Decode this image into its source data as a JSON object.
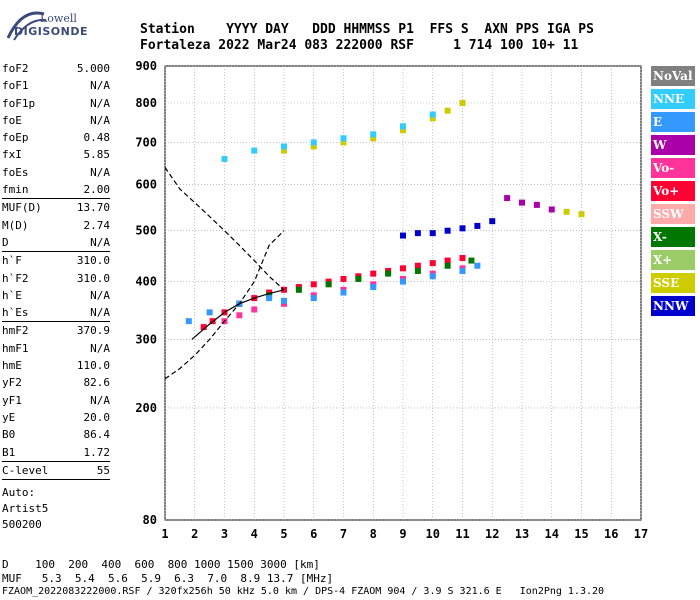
{
  "logo": {
    "top": "Lowell",
    "bottom": "DIGISONDE"
  },
  "header": {
    "line1": "Station    YYYY DAY   DDD HHMMSS P1  FFS S  AXN PPS IGA PS",
    "line2": "Fortaleza 2022 Mar24 083 222000 RSF     1 714 100 10+ 11"
  },
  "params": [
    {
      "k": "foF2",
      "v": "5.000"
    },
    {
      "k": "foF1",
      "v": "N/A"
    },
    {
      "k": "foF1p",
      "v": "N/A"
    },
    {
      "k": "foE",
      "v": "N/A"
    },
    {
      "k": "foEp",
      "v": "0.48"
    },
    {
      "k": "fxI",
      "v": "5.85"
    },
    {
      "k": "foEs",
      "v": "N/A"
    },
    {
      "k": "fmin",
      "v": "2.00"
    },
    {
      "k": "MUF(D)",
      "v": "13.70"
    },
    {
      "k": "M(D)",
      "v": "2.74"
    },
    {
      "k": "D",
      "v": "N/A"
    },
    {
      "k": "h`F",
      "v": "310.0"
    },
    {
      "k": "h`F2",
      "v": "310.0"
    },
    {
      "k": "h`E",
      "v": "N/A"
    },
    {
      "k": "h`Es",
      "v": "N/A"
    },
    {
      "k": "hmF2",
      "v": "370.9"
    },
    {
      "k": "hmF1",
      "v": "N/A"
    },
    {
      "k": "hmE",
      "v": "110.0"
    },
    {
      "k": "yF2",
      "v": "82.6"
    },
    {
      "k": "yF1",
      "v": "N/A"
    },
    {
      "k": "yE",
      "v": "20.0"
    },
    {
      "k": "B0",
      "v": "86.4"
    },
    {
      "k": "B1",
      "v": "1.72"
    },
    {
      "k": "C-level",
      "v": "55"
    }
  ],
  "auto": {
    "line1": "Auto:",
    "line2": "Artist5",
    "line3": "500200"
  },
  "bottom": {
    "d_row": "D    100  200  400  600  800 1000 1500 3000 [km]",
    "muf_row": "MUF   5.3  5.4  5.6  5.9  6.3  7.0  8.9 13.7 [MHz]",
    "footer": "FZAOM_2022083222000.RSF / 320fx256h 50 kHz 5.0 km / DPS-4 FZAOM 904 / 3.9 S 321.6 E   Ion2Png 1.3.20"
  },
  "legend": [
    {
      "label": "NoVal",
      "color": "#808080"
    },
    {
      "label": "NNE",
      "color": "#33ccff"
    },
    {
      "label": "E",
      "color": "#3399ff"
    },
    {
      "label": "W",
      "color": "#aa00aa"
    },
    {
      "label": "Vo-",
      "color": "#ff3399"
    },
    {
      "label": "Vo+",
      "color": "#ff0033"
    },
    {
      "label": "SSW",
      "color": "#ffaaaa"
    },
    {
      "label": "X-",
      "color": "#007700"
    },
    {
      "label": "X+",
      "color": "#99cc66"
    },
    {
      "label": "SSE",
      "color": "#cccc00"
    },
    {
      "label": "NNW",
      "color": "#0000cc"
    }
  ],
  "chart_data": {
    "type": "scatter",
    "title": "",
    "xlabel": "",
    "ylabel": "",
    "x_ticks": [
      1,
      2,
      3,
      4,
      5,
      6,
      7,
      8,
      9,
      10,
      11,
      12,
      13,
      14,
      15,
      16,
      17
    ],
    "y_ticks": [
      80,
      200,
      300,
      400,
      500,
      600,
      700,
      800,
      900
    ],
    "xlim": [
      1,
      17
    ],
    "ylim": [
      80,
      900
    ],
    "ylim_note": "square-root spaced axis",
    "grid": true,
    "series": [
      {
        "name": "Vo+",
        "color": "#ff0033",
        "points": [
          [
            2.3,
            320
          ],
          [
            2.6,
            330
          ],
          [
            3.0,
            345
          ],
          [
            3.5,
            360
          ],
          [
            4.0,
            370
          ],
          [
            4.5,
            380
          ],
          [
            5.0,
            385
          ],
          [
            5.5,
            390
          ],
          [
            6.0,
            395
          ],
          [
            6.5,
            400
          ],
          [
            7.0,
            405
          ],
          [
            7.5,
            410
          ],
          [
            8.0,
            415
          ],
          [
            8.5,
            420
          ],
          [
            9.0,
            425
          ],
          [
            9.5,
            430
          ],
          [
            10.0,
            435
          ],
          [
            10.5,
            440
          ],
          [
            11.0,
            445
          ]
        ]
      },
      {
        "name": "Vo-",
        "color": "#ff3399",
        "points": [
          [
            3.0,
            330
          ],
          [
            3.5,
            340
          ],
          [
            4.0,
            350
          ],
          [
            5.0,
            360
          ],
          [
            6.0,
            375
          ],
          [
            7.0,
            385
          ],
          [
            8.0,
            395
          ],
          [
            9.0,
            405
          ],
          [
            10.0,
            415
          ],
          [
            11.0,
            425
          ]
        ]
      },
      {
        "name": "X-",
        "color": "#007700",
        "points": [
          [
            3.5,
            360
          ],
          [
            4.5,
            375
          ],
          [
            5.5,
            385
          ],
          [
            6.5,
            395
          ],
          [
            7.5,
            405
          ],
          [
            8.5,
            415
          ],
          [
            9.5,
            420
          ],
          [
            10.5,
            430
          ],
          [
            11.3,
            440
          ]
        ]
      },
      {
        "name": "E",
        "color": "#3399ff",
        "points": [
          [
            1.8,
            330
          ],
          [
            2.5,
            345
          ],
          [
            3.5,
            360
          ],
          [
            4.5,
            370
          ],
          [
            5.0,
            365
          ],
          [
            6.0,
            370
          ],
          [
            7.0,
            380
          ],
          [
            8.0,
            390
          ],
          [
            9.0,
            400
          ],
          [
            10.0,
            410
          ],
          [
            11.0,
            420
          ],
          [
            11.5,
            430
          ]
        ]
      },
      {
        "name": "NNW",
        "color": "#0000cc",
        "points": [
          [
            9.0,
            490
          ],
          [
            9.5,
            495
          ],
          [
            10.0,
            495
          ],
          [
            10.5,
            500
          ],
          [
            11.0,
            505
          ],
          [
            11.5,
            510
          ],
          [
            12.0,
            520
          ]
        ]
      },
      {
        "name": "W",
        "color": "#aa00aa",
        "points": [
          [
            12.5,
            570
          ],
          [
            13.0,
            560
          ],
          [
            13.5,
            555
          ],
          [
            14.0,
            545
          ]
        ]
      },
      {
        "name": "SSE",
        "color": "#cccc00",
        "points": [
          [
            14.5,
            540
          ],
          [
            15.0,
            535
          ],
          [
            5.0,
            680
          ],
          [
            6.0,
            690
          ],
          [
            7.0,
            700
          ],
          [
            8.0,
            710
          ],
          [
            9.0,
            730
          ],
          [
            10.0,
            760
          ],
          [
            10.5,
            780
          ],
          [
            11.0,
            800
          ]
        ]
      },
      {
        "name": "NNE",
        "color": "#33ccff",
        "points": [
          [
            3.0,
            660
          ],
          [
            4.0,
            680
          ],
          [
            5.0,
            690
          ],
          [
            6.0,
            700
          ],
          [
            7.0,
            710
          ],
          [
            8.0,
            720
          ],
          [
            9.0,
            740
          ],
          [
            10.0,
            770
          ]
        ]
      }
    ],
    "profile_solid": [
      [
        1.9,
        300
      ],
      [
        2.5,
        325
      ],
      [
        3.0,
        345
      ],
      [
        3.5,
        360
      ],
      [
        4.0,
        370
      ],
      [
        4.5,
        378
      ],
      [
        5.0,
        385
      ]
    ],
    "profile_dashed": [
      [
        1.0,
        240
      ],
      [
        1.5,
        255
      ],
      [
        2.0,
        275
      ],
      [
        2.5,
        300
      ],
      [
        3.0,
        330
      ],
      [
        3.5,
        360
      ],
      [
        4.0,
        400
      ],
      [
        4.5,
        470
      ],
      [
        5.0,
        500
      ]
    ],
    "profile_dashed_upper": [
      [
        1.0,
        640
      ],
      [
        1.5,
        590
      ],
      [
        2.0,
        560
      ],
      [
        2.5,
        530
      ],
      [
        3.0,
        500
      ],
      [
        3.5,
        470
      ],
      [
        4.0,
        440
      ],
      [
        4.5,
        410
      ],
      [
        5.0,
        385
      ]
    ]
  }
}
